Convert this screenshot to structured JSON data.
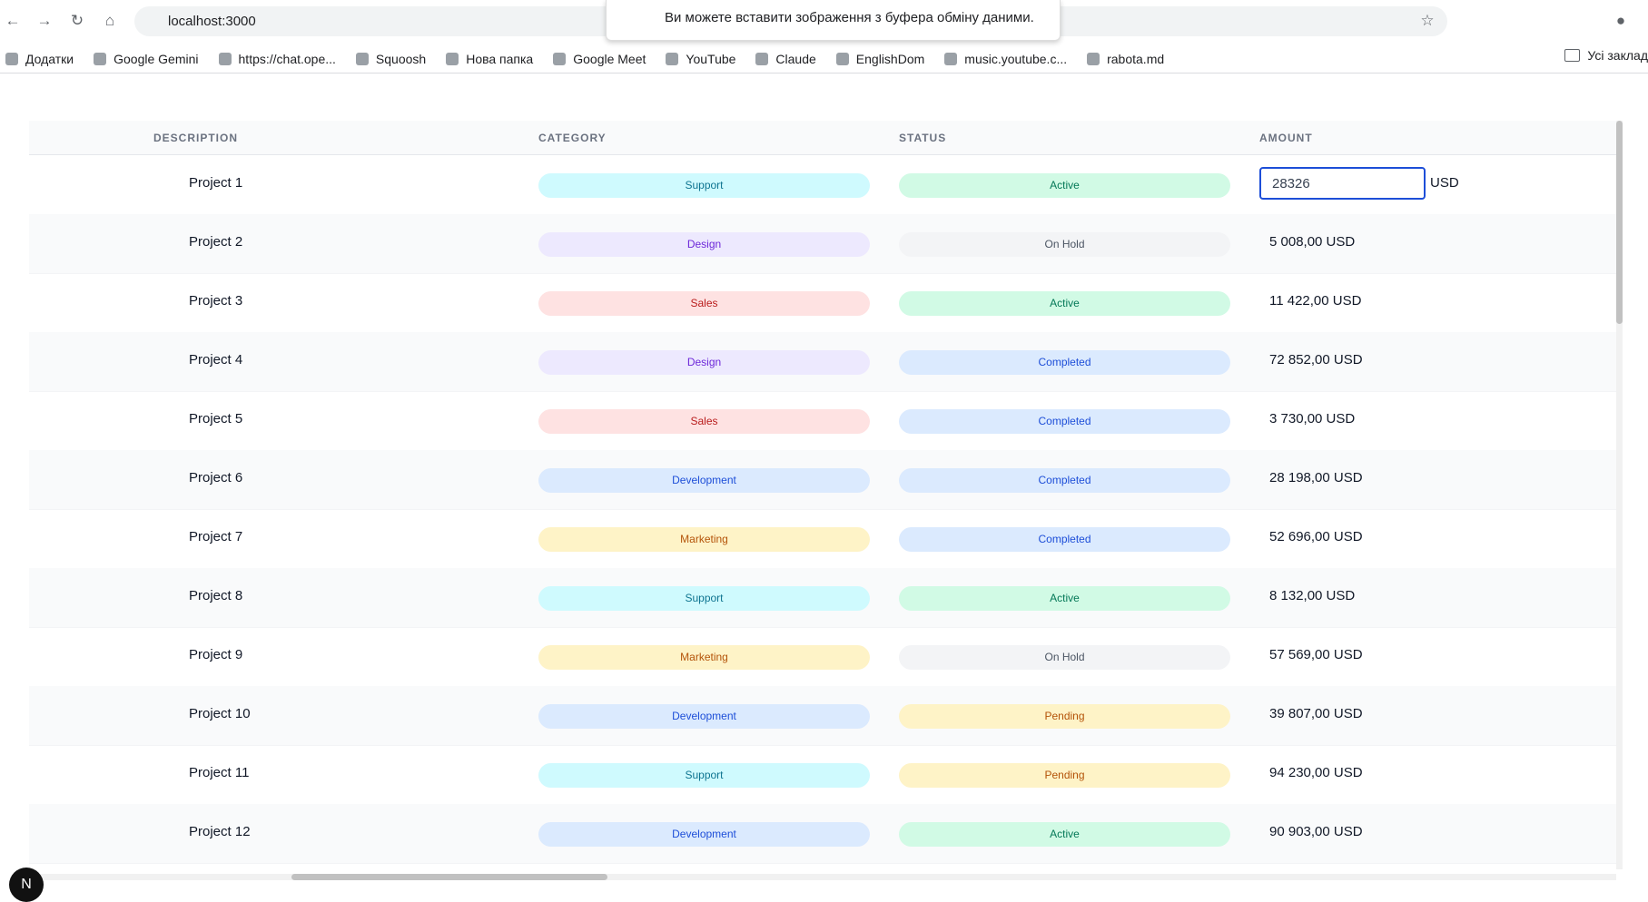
{
  "browser": {
    "url": "localhost:3000",
    "tooltip": "Ви можете вставити зображення з буфера обміну даними.",
    "bookmarks": [
      "Додатки",
      "Google Gemini",
      "https://chat.ope...",
      "Squoosh",
      "Нова папка",
      "Google Meet",
      "YouTube",
      "Claude",
      "EnglishDom",
      "music.youtube.c...",
      "rabota.md"
    ],
    "all_bookmarks": "Усі заклад"
  },
  "table": {
    "headers": [
      "DESCRIPTION",
      "CATEGORY",
      "STATUS",
      "AMOUNT"
    ],
    "rows": [
      {
        "description": "Project 1",
        "category": "Support",
        "category_colors": [
          "#cffafe",
          "#0e7490"
        ],
        "status": "Active",
        "status_colors": [
          "#d1fae5",
          "#047857"
        ],
        "amount": {
          "input": "28326",
          "unit": "USD"
        }
      },
      {
        "description": "Project 2",
        "category": "Design",
        "category_colors": [
          "#ede9fe",
          "#6d28d9"
        ],
        "status": "On Hold",
        "status_colors": [
          "#f3f4f6",
          "#4b5563"
        ],
        "amount": "5 008,00 USD"
      },
      {
        "description": "Project 3",
        "category": "Sales",
        "category_colors": [
          "#fee2e2",
          "#b91c1c"
        ],
        "status": "Active",
        "status_colors": [
          "#d1fae5",
          "#047857"
        ],
        "amount": "11 422,00 USD"
      },
      {
        "description": "Project 4",
        "category": "Design",
        "category_colors": [
          "#ede9fe",
          "#6d28d9"
        ],
        "status": "Completed",
        "status_colors": [
          "#dbeafe",
          "#1d4ed8"
        ],
        "amount": "72 852,00 USD"
      },
      {
        "description": "Project 5",
        "category": "Sales",
        "category_colors": [
          "#fee2e2",
          "#b91c1c"
        ],
        "status": "Completed",
        "status_colors": [
          "#dbeafe",
          "#1d4ed8"
        ],
        "amount": "3 730,00 USD"
      },
      {
        "description": "Project 6",
        "category": "Development",
        "category_colors": [
          "#dbeafe",
          "#1d4ed8"
        ],
        "status": "Completed",
        "status_colors": [
          "#dbeafe",
          "#1d4ed8"
        ],
        "amount": "28 198,00 USD"
      },
      {
        "description": "Project 7",
        "category": "Marketing",
        "category_colors": [
          "#fef3c7",
          "#b45309"
        ],
        "status": "Completed",
        "status_colors": [
          "#dbeafe",
          "#1d4ed8"
        ],
        "amount": "52 696,00 USD"
      },
      {
        "description": "Project 8",
        "category": "Support",
        "category_colors": [
          "#cffafe",
          "#0e7490"
        ],
        "status": "Active",
        "status_colors": [
          "#d1fae5",
          "#047857"
        ],
        "amount": "8 132,00 USD"
      },
      {
        "description": "Project 9",
        "category": "Marketing",
        "category_colors": [
          "#fef3c7",
          "#b45309"
        ],
        "status": "On Hold",
        "status_colors": [
          "#f3f4f6",
          "#4b5563"
        ],
        "amount": "57 569,00 USD"
      },
      {
        "description": "Project 10",
        "category": "Development",
        "category_colors": [
          "#dbeafe",
          "#1d4ed8"
        ],
        "status": "Pending",
        "status_colors": [
          "#fef3c7",
          "#b45309"
        ],
        "amount": "39 807,00 USD"
      },
      {
        "description": "Project 11",
        "category": "Support",
        "category_colors": [
          "#cffafe",
          "#0e7490"
        ],
        "status": "Pending",
        "status_colors": [
          "#fef3c7",
          "#b45309"
        ],
        "amount": "94 230,00 USD"
      },
      {
        "description": "Project 12",
        "category": "Development",
        "category_colors": [
          "#dbeafe",
          "#1d4ed8"
        ],
        "status": "Active",
        "status_colors": [
          "#d1fae5",
          "#047857"
        ],
        "amount": "90 903,00 USD"
      }
    ]
  }
}
